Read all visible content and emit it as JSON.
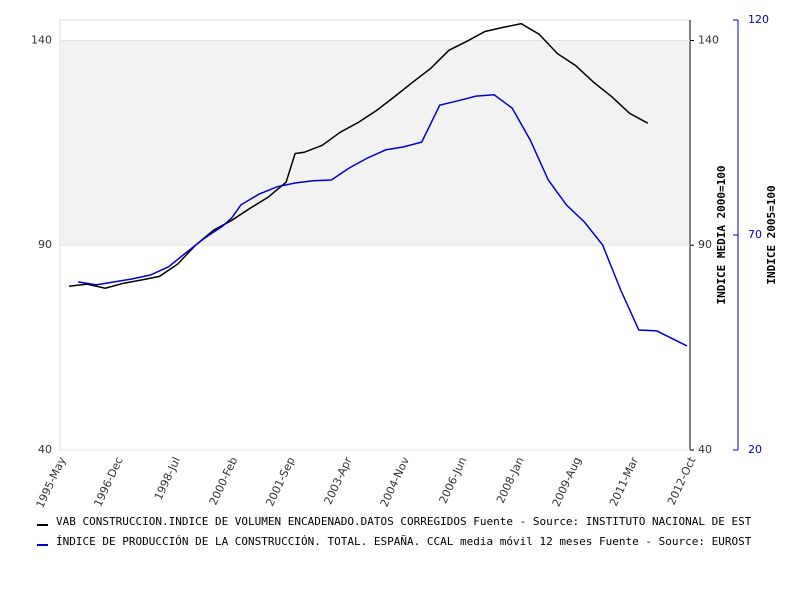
{
  "chart_data": {
    "type": "line",
    "y_label": "INDICE MEDIA 2000=100",
    "y2_label": "INDICE 2005=100",
    "ylim": [
      40,
      145
    ],
    "yticks": [
      40,
      90,
      140
    ],
    "y2lim": [
      20,
      120
    ],
    "y2ticks": [
      20,
      70,
      120
    ],
    "shaded_band": [
      90,
      140
    ],
    "xticks": [
      "1995-May",
      "1996-Dec",
      "1998-Jul",
      "2000-Feb",
      "2001-Sep",
      "2003-Apr",
      "2004-Nov",
      "2006-Jun",
      "2008-Jan",
      "2009-Aug",
      "2011-Mar",
      "2012-Oct"
    ],
    "series": [
      {
        "name": "VAB CONSTRUCCION.INDICE DE VOLUMEN ENCADENADO.DATOS CORREGIDOS  Fuente - Source: INSTITUTO NACIONAL DE EST",
        "color": "#000000",
        "x": [
          "1995-Aug",
          "1996-Feb",
          "1996-Aug",
          "1997-Feb",
          "1997-Aug",
          "1998-Feb",
          "1998-Aug",
          "1999-Feb",
          "1999-Aug",
          "2000-Feb",
          "2000-Aug",
          "2001-Feb",
          "2001-Aug",
          "2001-Nov",
          "2002-Feb",
          "2002-Aug",
          "2003-Feb",
          "2003-Aug",
          "2004-Feb",
          "2004-Aug",
          "2005-Feb",
          "2005-Aug",
          "2006-Feb",
          "2006-Aug",
          "2007-Feb",
          "2007-Aug",
          "2008-Feb",
          "2008-Aug",
          "2009-Feb",
          "2009-Aug",
          "2010-Feb",
          "2010-Aug",
          "2011-Feb",
          "2011-Aug"
        ],
        "values": [
          80.0,
          80.5,
          79.5,
          80.7,
          81.5,
          82.4,
          85.4,
          90.0,
          93.7,
          96.1,
          99.0,
          101.7,
          105.4,
          112.4,
          112.7,
          114.4,
          117.6,
          120.0,
          122.9,
          126.3,
          129.8,
          133.2,
          137.6,
          139.8,
          142.2,
          143.2,
          144.1,
          141.5,
          136.8,
          133.9,
          129.8,
          126.3,
          122.2,
          119.8
        ]
      },
      {
        "name": "ÍNDICE DE PRODUCCIÓN DE LA CONSTRUCCIÓN. TOTAL. ESPAÑA. CCAL media móvil 12 meses  Fuente - Source: EUROST",
        "color": "#0000cc",
        "axis": "y2",
        "x": [
          "1995-Nov",
          "1996-May",
          "1996-Nov",
          "1997-May",
          "1997-Nov",
          "1998-May",
          "1998-Nov",
          "1999-May",
          "1999-Nov",
          "2000-Feb",
          "2000-May",
          "2000-Nov",
          "2001-May",
          "2001-Nov",
          "2002-May",
          "2002-Nov",
          "2003-May",
          "2003-Nov",
          "2004-May",
          "2004-Nov",
          "2005-May",
          "2005-Nov",
          "2006-May",
          "2006-Nov",
          "2007-May",
          "2007-Nov",
          "2008-May",
          "2008-Nov",
          "2009-May",
          "2009-Nov",
          "2010-May",
          "2010-Nov",
          "2011-May",
          "2011-Nov",
          "2012-May",
          "2012-Sep"
        ],
        "values": [
          59.1,
          58.4,
          59.1,
          59.8,
          60.7,
          62.6,
          66.0,
          69.3,
          72.1,
          74.0,
          77.0,
          79.5,
          81.2,
          82.1,
          82.6,
          82.8,
          85.6,
          87.9,
          89.8,
          90.5,
          91.6,
          100.2,
          101.2,
          102.3,
          102.6,
          99.5,
          92.1,
          82.8,
          77.0,
          73.0,
          67.7,
          57.2,
          47.9,
          47.7,
          45.6,
          44.2
        ]
      }
    ]
  }
}
